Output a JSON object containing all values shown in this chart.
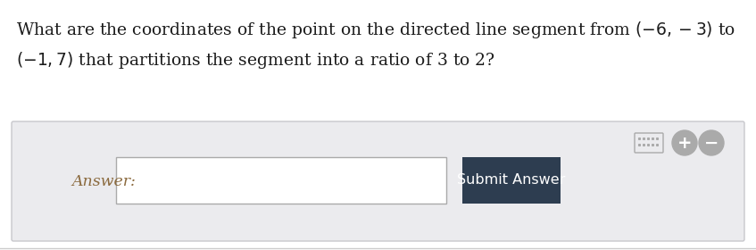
{
  "bg_color": "#ffffff",
  "text_color": "#1c1c1c",
  "answer_label": "Answer:",
  "answer_color": "#8b6a3e",
  "button_text": "Submit Answer",
  "button_bg": "#2d3d50",
  "button_text_color": "#ffffff",
  "panel_bg": "#ebebee",
  "panel_border": "#c8c8cc",
  "input_bg": "#ffffff",
  "input_border": "#aaaaaa",
  "icon_color": "#aaaaaa",
  "font_size_question": 13.5,
  "font_size_answer": 12.5,
  "font_size_button": 11.5,
  "figwidth": 8.47,
  "figheight": 2.8,
  "dpi": 100
}
